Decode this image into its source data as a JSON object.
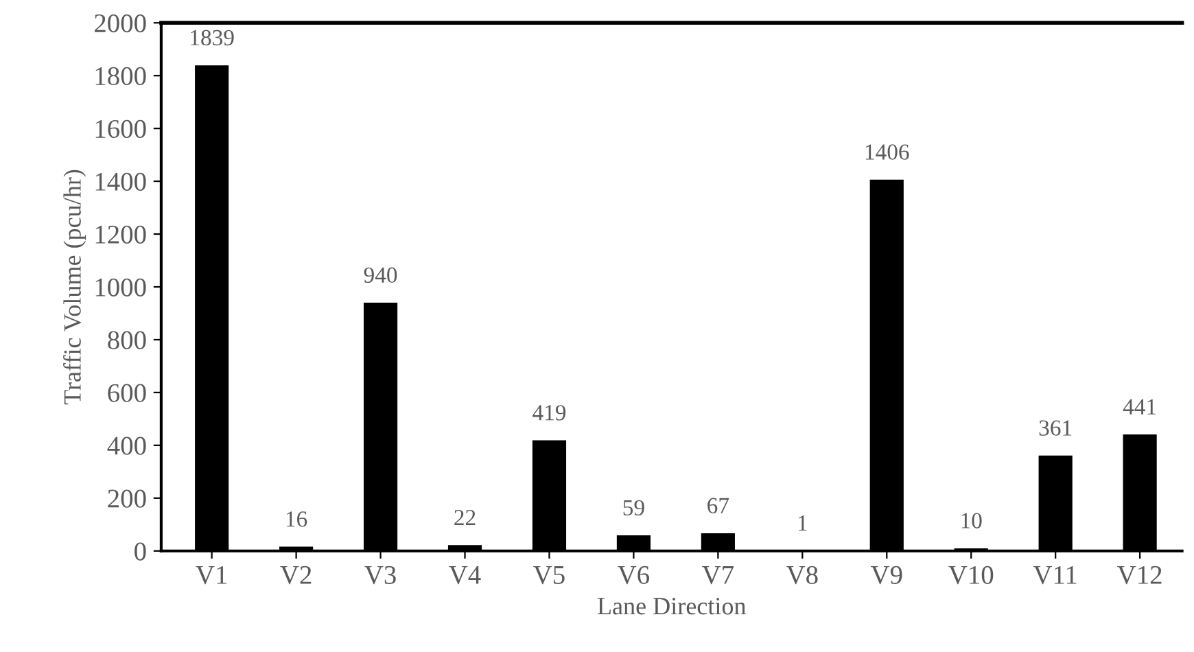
{
  "chart_data": {
    "type": "bar",
    "xlabel": "Lane Direction",
    "ylabel": "Traffic Volume (pcu/hr)",
    "categories": [
      "V1",
      "V2",
      "V3",
      "V4",
      "V5",
      "V6",
      "V7",
      "V8",
      "V9",
      "V10",
      "V11",
      "V12"
    ],
    "values": [
      1839,
      16,
      940,
      22,
      419,
      59,
      67,
      1,
      1406,
      10,
      361,
      441
    ],
    "color": "#000000",
    "ylim": [
      0,
      2000
    ],
    "yticks": [
      0,
      200,
      400,
      600,
      800,
      1000,
      1200,
      1400,
      1600,
      1800,
      2000
    ],
    "data_labels": true,
    "grid": false,
    "legend": false
  }
}
